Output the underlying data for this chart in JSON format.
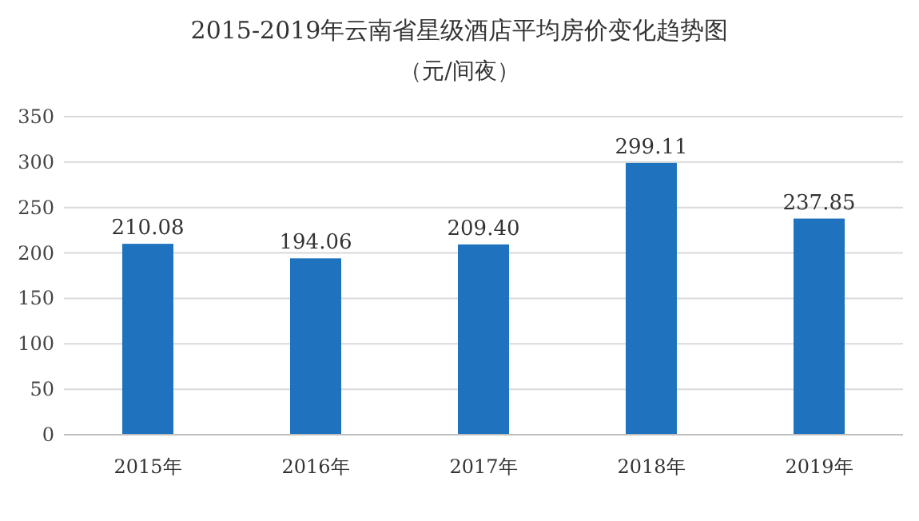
{
  "chart_data": {
    "type": "bar",
    "title": "2015-2019年云南省星级酒店平均房价变化趋势图",
    "subtitle": "（元/间夜）",
    "categories": [
      "2015年",
      "2016年",
      "2017年",
      "2018年",
      "2019年"
    ],
    "values": [
      210.08,
      194.06,
      209.4,
      299.11,
      237.85
    ],
    "value_labels": [
      "210.08",
      "194.06",
      "209.40",
      "299.11",
      "237.85"
    ],
    "color": "#1f72be",
    "ylim": [
      0,
      350
    ],
    "yticks": [
      0,
      50,
      100,
      150,
      200,
      250,
      300,
      350
    ],
    "grid": "y"
  }
}
